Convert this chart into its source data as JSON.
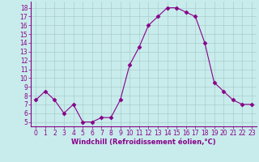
{
  "x": [
    0,
    1,
    2,
    3,
    4,
    5,
    6,
    7,
    8,
    9,
    10,
    11,
    12,
    13,
    14,
    15,
    16,
    17,
    18,
    19,
    20,
    21,
    22,
    23
  ],
  "y": [
    7.5,
    8.5,
    7.5,
    6.0,
    7.0,
    5.0,
    5.0,
    5.5,
    5.5,
    7.5,
    11.5,
    13.5,
    16.0,
    17.0,
    18.0,
    18.0,
    17.5,
    17.0,
    14.0,
    9.5,
    8.5,
    7.5,
    7.0,
    7.0
  ],
  "line_color": "#880088",
  "marker": "D",
  "marker_size": 2.5,
  "bg_color": "#c8ecec",
  "grid_color": "#aacccc",
  "xlabel": "Windchill (Refroidissement éolien,°C)",
  "xlabel_color": "#880088",
  "tick_color": "#880088",
  "axis_color": "#880088",
  "ylim": [
    4.5,
    18.7
  ],
  "xlim": [
    -0.5,
    23.5
  ],
  "yticks": [
    5,
    6,
    7,
    8,
    9,
    10,
    11,
    12,
    13,
    14,
    15,
    16,
    17,
    18
  ],
  "xticks": [
    0,
    1,
    2,
    3,
    4,
    5,
    6,
    7,
    8,
    9,
    10,
    11,
    12,
    13,
    14,
    15,
    16,
    17,
    18,
    19,
    20,
    21,
    22,
    23
  ],
  "tick_fontsize": 5.5,
  "xlabel_fontsize": 6.0
}
